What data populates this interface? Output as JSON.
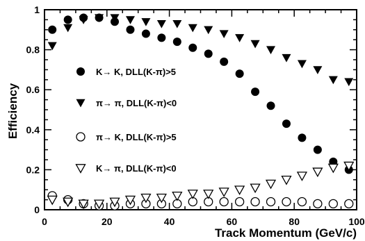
{
  "chart_data": {
    "type": "scatter",
    "xlabel": "Track Momentum (GeV/c)",
    "ylabel": "Efficiency",
    "xlim": [
      0,
      100
    ],
    "ylim": [
      0,
      1
    ],
    "x_ticks": [
      "0",
      "20",
      "40",
      "60",
      "80",
      "100"
    ],
    "y_ticks": [
      "0",
      "0.2",
      "0.4",
      "0.6",
      "0.8",
      "1"
    ],
    "legend_position": "left",
    "grid": false,
    "x": [
      2.5,
      7.5,
      12.5,
      17.5,
      22.5,
      27.5,
      32.5,
      37.5,
      42.5,
      47.5,
      52.5,
      57.5,
      62.5,
      67.5,
      72.5,
      77.5,
      82.5,
      87.5,
      92.5,
      97.5
    ],
    "series": [
      {
        "name": "K→ K, DLL(K-π)>5",
        "marker": "filled-circle",
        "values": [
          0.9,
          0.95,
          0.96,
          0.96,
          0.94,
          0.9,
          0.88,
          0.86,
          0.84,
          0.81,
          0.78,
          0.74,
          0.68,
          0.59,
          0.52,
          0.43,
          0.36,
          0.3,
          0.24,
          0.2
        ]
      },
      {
        "name": "π→ π, DLL(K-π)<0",
        "marker": "filled-triangle-down",
        "values": [
          0.82,
          0.91,
          0.95,
          0.96,
          0.96,
          0.95,
          0.94,
          0.93,
          0.93,
          0.91,
          0.9,
          0.88,
          0.86,
          0.83,
          0.8,
          0.76,
          0.73,
          0.7,
          0.65,
          0.64
        ]
      },
      {
        "name": "π→ K, DLL(K-π)>5",
        "marker": "open-circle",
        "values": [
          0.07,
          0.05,
          0.03,
          0.02,
          0.02,
          0.03,
          0.03,
          0.03,
          0.03,
          0.04,
          0.04,
          0.04,
          0.04,
          0.04,
          0.04,
          0.04,
          0.04,
          0.03,
          0.03,
          0.03
        ]
      },
      {
        "name": "K→ π, DLL(K-π)<0",
        "marker": "open-triangle-down",
        "values": [
          0.05,
          0.04,
          0.03,
          0.03,
          0.04,
          0.05,
          0.06,
          0.06,
          0.07,
          0.08,
          0.08,
          0.09,
          0.1,
          0.11,
          0.13,
          0.15,
          0.17,
          0.19,
          0.21,
          0.22
        ]
      }
    ]
  }
}
